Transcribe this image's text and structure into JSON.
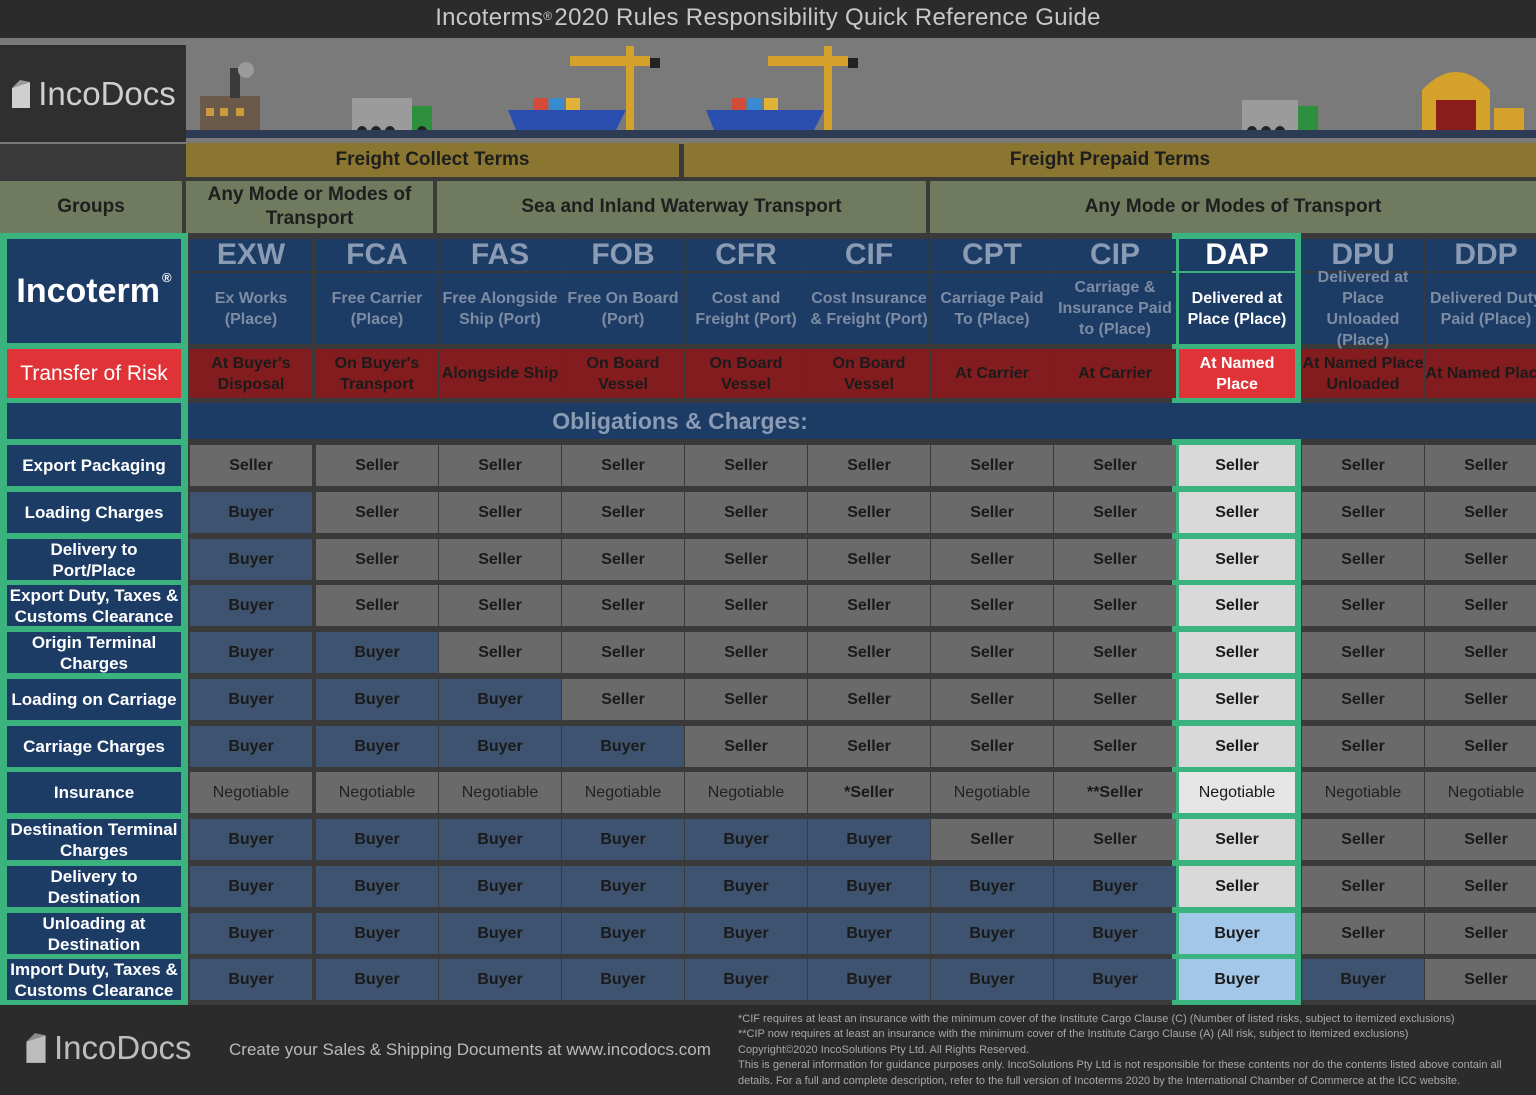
{
  "title": {
    "text": "Incoterms",
    "reg": "®",
    "rest": "2020 Rules Responsibility Quick Reference Guide"
  },
  "logo": {
    "text": "IncoDocs"
  },
  "terms": {
    "collect": "Freight Collect Terms",
    "prepaid": "Freight Prepaid Terms"
  },
  "groups": {
    "label": "Groups",
    "any_mode_1": "Any Mode or Modes of Transport",
    "sea": "Sea and Inland Waterway Transport",
    "any_mode_2": "Any Mode or Modes of Transport"
  },
  "incoterm_label": "Incoterm",
  "incoterm_reg": "®",
  "risk_label": "Transfer of Risk",
  "obligations_label": "Obligations & Charges:",
  "incoterms": [
    {
      "code": "EXW",
      "name": "Ex Works (Place)",
      "risk": "At Buyer's Disposal"
    },
    {
      "code": "FCA",
      "name": "Free Carrier (Place)",
      "risk": "On Buyer's Transport"
    },
    {
      "code": "FAS",
      "name": "Free Alongside Ship (Port)",
      "risk": "Alongside Ship"
    },
    {
      "code": "FOB",
      "name": "Free On Board (Port)",
      "risk": "On Board Vessel"
    },
    {
      "code": "CFR",
      "name": "Cost and Freight (Port)",
      "risk": "On Board Vessel"
    },
    {
      "code": "CIF",
      "name": "Cost Insurance & Freight (Port)",
      "risk": "On Board Vessel"
    },
    {
      "code": "CPT",
      "name": "Carriage Paid To (Place)",
      "risk": "At Carrier"
    },
    {
      "code": "CIP",
      "name": "Carriage & Insurance Paid to (Place)",
      "risk": "At Carrier"
    },
    {
      "code": "DAP",
      "name": "Delivered at Place (Place)",
      "risk": "At Named Place"
    },
    {
      "code": "DPU",
      "name": "Delivered at Place Unloaded (Place)",
      "risk": "At Named Place Unloaded"
    },
    {
      "code": "DDP",
      "name": "Delivered Duty Paid (Place)",
      "risk": "At Named Place"
    }
  ],
  "obligations": [
    {
      "label": "Export Packaging",
      "values": [
        "Seller",
        "Seller",
        "Seller",
        "Seller",
        "Seller",
        "Seller",
        "Seller",
        "Seller",
        "Seller",
        "Seller",
        "Seller"
      ]
    },
    {
      "label": "Loading Charges",
      "values": [
        "Buyer",
        "Seller",
        "Seller",
        "Seller",
        "Seller",
        "Seller",
        "Seller",
        "Seller",
        "Seller",
        "Seller",
        "Seller"
      ]
    },
    {
      "label": "Delivery to Port/Place",
      "values": [
        "Buyer",
        "Seller",
        "Seller",
        "Seller",
        "Seller",
        "Seller",
        "Seller",
        "Seller",
        "Seller",
        "Seller",
        "Seller"
      ]
    },
    {
      "label": "Export Duty, Taxes & Customs Clearance",
      "values": [
        "Buyer",
        "Seller",
        "Seller",
        "Seller",
        "Seller",
        "Seller",
        "Seller",
        "Seller",
        "Seller",
        "Seller",
        "Seller"
      ]
    },
    {
      "label": "Origin Terminal Charges",
      "values": [
        "Buyer",
        "Buyer",
        "Seller",
        "Seller",
        "Seller",
        "Seller",
        "Seller",
        "Seller",
        "Seller",
        "Seller",
        "Seller"
      ]
    },
    {
      "label": "Loading on Carriage",
      "values": [
        "Buyer",
        "Buyer",
        "Buyer",
        "Seller",
        "Seller",
        "Seller",
        "Seller",
        "Seller",
        "Seller",
        "Seller",
        "Seller"
      ]
    },
    {
      "label": "Carriage Charges",
      "values": [
        "Buyer",
        "Buyer",
        "Buyer",
        "Buyer",
        "Seller",
        "Seller",
        "Seller",
        "Seller",
        "Seller",
        "Seller",
        "Seller"
      ]
    },
    {
      "label": "Insurance",
      "values": [
        "Negotiable",
        "Negotiable",
        "Negotiable",
        "Negotiable",
        "Negotiable",
        "*Seller",
        "Negotiable",
        "**Seller",
        "Negotiable",
        "Negotiable",
        "Negotiable"
      ]
    },
    {
      "label": "Destination Terminal Charges",
      "values": [
        "Buyer",
        "Buyer",
        "Buyer",
        "Buyer",
        "Buyer",
        "Buyer",
        "Seller",
        "Seller",
        "Seller",
        "Seller",
        "Seller"
      ]
    },
    {
      "label": "Delivery to Destination",
      "values": [
        "Buyer",
        "Buyer",
        "Buyer",
        "Buyer",
        "Buyer",
        "Buyer",
        "Buyer",
        "Buyer",
        "Seller",
        "Seller",
        "Seller"
      ]
    },
    {
      "label": "Unloading at Destination",
      "values": [
        "Buyer",
        "Buyer",
        "Buyer",
        "Buyer",
        "Buyer",
        "Buyer",
        "Buyer",
        "Buyer",
        "Buyer",
        "Seller",
        "Seller"
      ]
    },
    {
      "label": "Import Duty, Taxes & Customs Clearance",
      "values": [
        "Buyer",
        "Buyer",
        "Buyer",
        "Buyer",
        "Buyer",
        "Buyer",
        "Buyer",
        "Buyer",
        "Buyer",
        "Buyer",
        "Seller"
      ]
    }
  ],
  "highlight": "DAP",
  "footer": {
    "logo": "IncoDocs",
    "tagline": "Create your Sales & Shipping Documents at www.incodocs.com",
    "notes": [
      "*CIF requires at least an insurance with the minimum cover of the Institute Cargo Clause (C) (Number of listed risks, subject to itemized exclusions)",
      "**CIP now requires at least an insurance with the minimum cover of the Institute Cargo Clause (A) (All risk, subject to itemized exclusions)",
      "Copyright©2020 IncoSolutions Pty Ltd. All Rights Reserved.",
      "This is general information for guidance purposes only.  IncoSolutions Pty Ltd is not responsible for these contents nor do the contents listed above contain all",
      "details.  For a full and complete description, refer to the full version of Incoterms   2020 by the International Chamber of Commerce at the ICC website."
    ]
  },
  "colors": {
    "seller": "#6a6a6a",
    "buyer": "#3e536f",
    "highlight_border": "#3bb37e",
    "risk_red": "#e03338",
    "navy": "#1c3c66"
  }
}
